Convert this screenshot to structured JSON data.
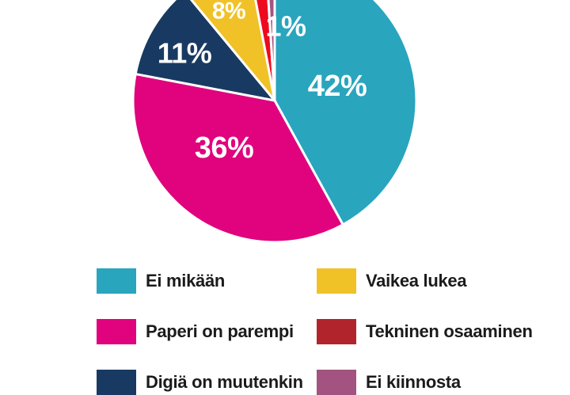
{
  "page": {
    "background_color": "#ffffff",
    "legend_text_color": "#1b1b1b"
  },
  "chart_data": {
    "type": "pie",
    "unit": "%",
    "start_angle": "top",
    "direction": "clockwise",
    "legend_position": "bottom",
    "clipped_edges": [
      "top",
      "bottom"
    ],
    "slice_stroke_color": "#ffffff",
    "label_text_color": "#ffffff",
    "categories": [
      "Ei mikään",
      "Paperi on parempi",
      "Digiä on muutenkin",
      "Vaikea lukea",
      "Tekninen osaaminen",
      "Ei kiinnosta"
    ],
    "values": [
      42,
      36,
      11,
      8,
      2,
      1
    ],
    "slices": [
      {
        "label": "Ei mikään",
        "value": 42,
        "pct_label": "42%",
        "color": "#29A5BE"
      },
      {
        "label": "Paperi on parempi",
        "value": 36,
        "pct_label": "36%",
        "color": "#E0037D"
      },
      {
        "label": "Digiä on muutenkin",
        "value": 11,
        "pct_label": "11%",
        "color": "#183A62"
      },
      {
        "label": "Vaikea lukea",
        "value": 8,
        "pct_label": "8%",
        "color": "#F0C228"
      },
      {
        "label": "Tekninen osaaminen",
        "value": 2,
        "pct_label": "",
        "color": "#EE0A1E",
        "legend_color": "#B2242B"
      },
      {
        "label": "Ei kiinnosta",
        "value": 1,
        "pct_label": "1%",
        "color": "#A35380"
      }
    ]
  }
}
